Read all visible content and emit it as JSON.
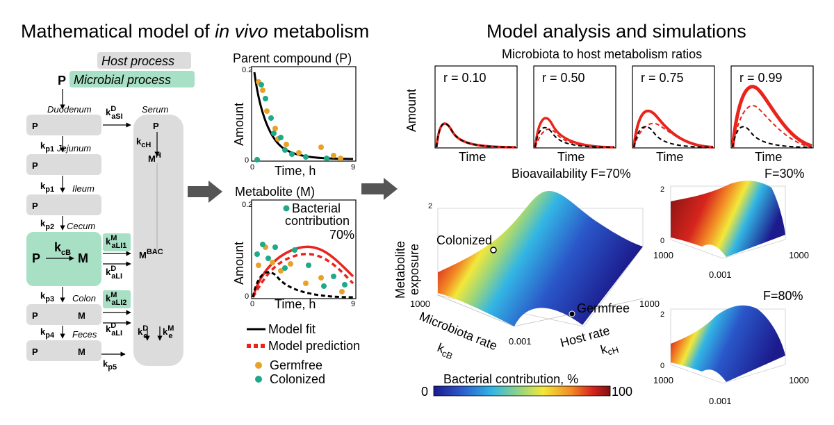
{
  "left": {
    "title_pre": "Mathematical model of ",
    "title_em": "in vivo",
    "title_post": " metabolism",
    "legend_host": "Host process",
    "legend_microbial": "Microbial process",
    "compound": "P",
    "compartments": [
      "Duodenum",
      "Jejunum",
      "Ileum",
      "Cecum",
      "Colon",
      "Feces",
      "Serum"
    ],
    "metabolite": "M",
    "rates": {
      "kaSI_base": "k",
      "kaSI_sup": "D",
      "kaSI_sub": "aSI",
      "kcH_base": "k",
      "kcH_sub": "cH",
      "MH_base": "M",
      "MH_sup": "H",
      "MBAC_base": "M",
      "MBAC_sup": "BAC",
      "kp1_base": "k",
      "kp1_sub": "p1",
      "kp2_base": "k",
      "kp2_sub": "p2",
      "kp3_base": "k",
      "kp3_sub": "p3",
      "kp4_base": "k",
      "kp4_sub": "p4",
      "kp5_base": "k",
      "kp5_sub": "p5",
      "kcB_base": "k",
      "kcB_sub": "cB",
      "kaLI1_base": "k",
      "kaLI1_sup": "M",
      "kaLI1_sub": "aLI1",
      "kaLI_D_base": "k",
      "kaLI_D_sup": "D",
      "kaLI_D_sub": "aLI",
      "kaLI2_base": "k",
      "kaLI2_sup": "M",
      "kaLI2_sub": "aLI2",
      "kaLI_D2_base": "k",
      "kaLI_D2_sup": "D",
      "kaLI_D2_sub": "aLI",
      "keD_base": "k",
      "keD_sup": "D",
      "keD_sub": "e",
      "keM_base": "k",
      "keM_sup": "M",
      "keM_sub": "e"
    }
  },
  "middle": {
    "parent_title": "Parent compound (P)",
    "metabolite_title": "Metabolite (M)",
    "ylabel": "Amount",
    "xlabel": "Time, h",
    "y_ticks": [
      "0",
      "0.2"
    ],
    "x_ticks": [
      "0",
      "9"
    ],
    "annotation_line1": "Bacterial",
    "annotation_line2": "contribution",
    "annotation_value": "70%",
    "legend": [
      "Model fit",
      "Model prediction",
      "Germfree",
      "Colonized"
    ]
  },
  "right": {
    "title": "Model analysis and simulations",
    "subtitle": "Microbiota to host metabolism ratios",
    "amount_label": "Amount",
    "time_label": "Time",
    "ratios": [
      "r = 0.10",
      "r = 0.50",
      "r = 0.75",
      "r = 0.99"
    ],
    "bioavailability_main": "Bioavailability F=70%",
    "f30": "F=30%",
    "f80": "F=80%",
    "zlabel_line1": "Metabolite",
    "zlabel_line2": "exposure",
    "x_axis_line1": "Microbiota rate",
    "x_axis_k": "k",
    "x_axis_sub": "cB",
    "y_axis_line1": "Host rate",
    "y_axis_k": "k",
    "y_axis_sub": "cH",
    "tick_1000": "1000",
    "tick_0001": "0.001",
    "tick_2": "2",
    "tick_0": "0",
    "colonized": "Colonized",
    "germfree": "Germfree",
    "colorbar_label": "Bacterial contribution, %",
    "colorbar_min": "0",
    "colorbar_max": "100"
  },
  "colors": {
    "host_gray": "#dcdcdc",
    "microbial_green": "#a8e0c6",
    "germfree_orange": "#e8a22a",
    "colonized_teal": "#1fa88a",
    "fit_black": "#000000",
    "prediction_red": "#e8241c",
    "arrow_gray": "#555555"
  }
}
